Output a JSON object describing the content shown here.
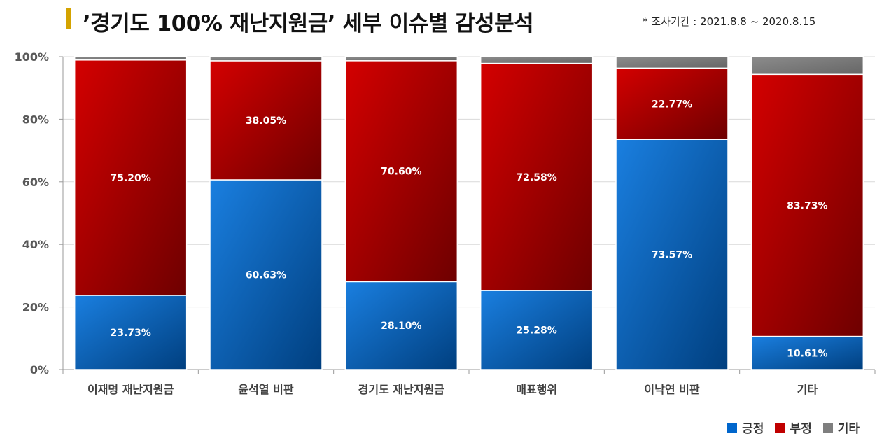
{
  "title": "’경기도 100% 재난지원금’ 세부 이슈별 감성분석",
  "period": "* 조사기간 : 2021.8.8 ~ 2020.8.15",
  "colors": {
    "positive": "#0066cc",
    "negative": "#c00000",
    "other": "#7f7f7f",
    "title_mark": "#d4a300"
  },
  "chart_data": {
    "type": "bar",
    "stacked": true,
    "normalized": true,
    "categories": [
      "이재명 재난지원금",
      "윤석열 비판",
      "경기도 재난지원금",
      "매표행위",
      "이낙연 비판",
      "기타"
    ],
    "series": [
      {
        "name": "긍정",
        "values": [
          23.73,
          60.63,
          28.1,
          25.28,
          73.57,
          10.61
        ],
        "labels": [
          "23.73%",
          "60.63%",
          "28.10%",
          "25.28%",
          "73.57%",
          "10.61%"
        ]
      },
      {
        "name": "부정",
        "values": [
          75.2,
          38.05,
          70.6,
          72.58,
          22.77,
          83.73
        ],
        "labels": [
          "75.20%",
          "38.05%",
          "70.60%",
          "72.58%",
          "22.77%",
          "83.73%"
        ]
      },
      {
        "name": "기타",
        "values": [
          1.07,
          1.32,
          1.3,
          2.14,
          3.66,
          5.66
        ]
      }
    ],
    "yticks": [
      "0%",
      "20%",
      "40%",
      "60%",
      "80%",
      "100%"
    ],
    "ylim": [
      0,
      100
    ],
    "grid": true,
    "legend": "bottom-right"
  }
}
